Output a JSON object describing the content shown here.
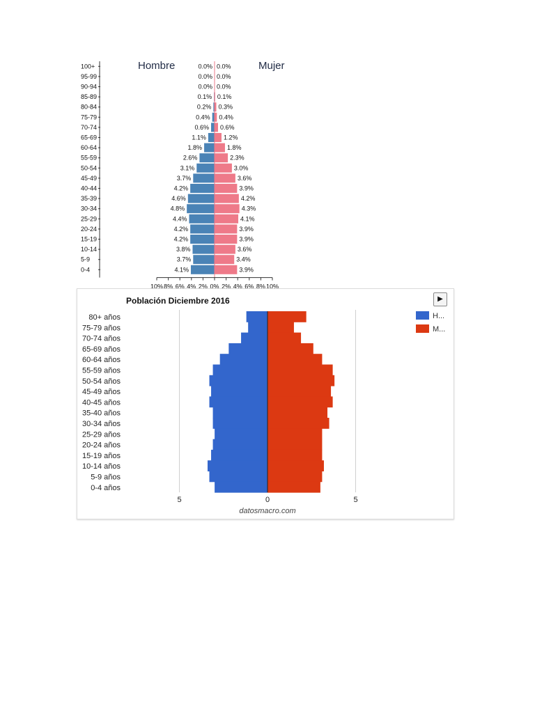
{
  "chart_data": [
    {
      "type": "bar",
      "orientation": "horizontal-pyramid",
      "categories": [
        "100+",
        "95-99",
        "90-94",
        "85-89",
        "80-84",
        "75-79",
        "70-74",
        "65-69",
        "60-64",
        "55-59",
        "50-54",
        "45-49",
        "40-44",
        "35-39",
        "30-34",
        "25-29",
        "20-24",
        "15-19",
        "10-14",
        "5-9",
        "0-4"
      ],
      "series": [
        {
          "name": "Hombre",
          "values": [
            0.0,
            0.0,
            0.0,
            0.1,
            0.2,
            0.4,
            0.6,
            1.1,
            1.8,
            2.6,
            3.1,
            3.7,
            4.2,
            4.6,
            4.8,
            4.4,
            4.2,
            4.2,
            3.8,
            3.7,
            4.1
          ],
          "labels": [
            "0.0%",
            "0.0%",
            "0.0%",
            "0.1%",
            "0.2%",
            "0.4%",
            "0.6%",
            "1.1%",
            "1.8%",
            "2.6%",
            "3.1%",
            "3.7%",
            "4.2%",
            "4.6%",
            "4.8%",
            "4.4%",
            "4.2%",
            "4.2%",
            "3.8%",
            "3.7%",
            "4.1%"
          ],
          "color": "#4a83b6"
        },
        {
          "name": "Mujer",
          "values": [
            0.0,
            0.0,
            0.0,
            0.1,
            0.3,
            0.4,
            0.6,
            1.2,
            1.8,
            2.3,
            3.0,
            3.6,
            3.9,
            4.2,
            4.3,
            4.1,
            3.9,
            3.9,
            3.6,
            3.4,
            3.9
          ],
          "labels": [
            "0.0%",
            "0.0%",
            "0.0%",
            "0.1%",
            "0.3%",
            "0.4%",
            "0.6%",
            "1.2%",
            "1.8%",
            "2.3%",
            "3.0%",
            "3.6%",
            "3.9%",
            "4.2%",
            "4.3%",
            "4.1%",
            "3.9%",
            "3.9%",
            "3.6%",
            "3.4%",
            "3.9%"
          ],
          "color": "#ee7a89"
        }
      ],
      "x_ticks": [
        "10%",
        "8%",
        "6%",
        "4%",
        "2%",
        "0%",
        "2%",
        "4%",
        "6%",
        "8%",
        "10%"
      ],
      "xlim": [
        -10,
        10
      ],
      "grid": false
    },
    {
      "type": "bar",
      "orientation": "horizontal-pyramid",
      "title": "Población Diciembre 2016",
      "categories": [
        "80+ años",
        "75-79 años",
        "70-74 años",
        "65-69 años",
        "60-64 años",
        "55-59 años",
        "50-54 años",
        "45-49 años",
        "40-45 años",
        "35-40 años",
        "30-34 años",
        "25-29 años",
        "20-24 años",
        "15-19 años",
        "10-14 años",
        "5-9 años",
        "0-4 años"
      ],
      "series": [
        {
          "name": "H...",
          "values": [
            1.2,
            1.1,
            1.5,
            2.2,
            2.7,
            3.1,
            3.3,
            3.2,
            3.3,
            3.1,
            3.1,
            3.0,
            3.1,
            3.2,
            3.4,
            3.3,
            3.0
          ],
          "color": "#3366cc"
        },
        {
          "name": "M...",
          "values": [
            2.2,
            1.5,
            1.9,
            2.6,
            3.1,
            3.7,
            3.8,
            3.6,
            3.7,
            3.4,
            3.5,
            3.1,
            3.1,
            3.1,
            3.2,
            3.1,
            3.0
          ],
          "color": "#dc3912"
        }
      ],
      "x_ticks": [
        "5",
        "0",
        "5"
      ],
      "xlim": [
        -5,
        5
      ],
      "grid": true,
      "legend_position": "right",
      "source": "datosmacro.com"
    }
  ],
  "controls": {
    "play_icon": "play-icon",
    "play_glyph": "▶"
  }
}
